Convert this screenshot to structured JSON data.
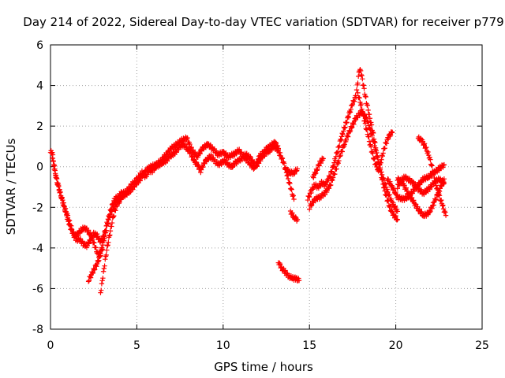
{
  "chart_data": {
    "type": "scatter",
    "title": "Day 214 of 2022, Sidereal Day-to-day VTEC variation (SDTVAR) for receiver p779",
    "xlabel": "GPS time / hours",
    "ylabel": "SDTVAR / TECUs",
    "xlim": [
      0,
      25
    ],
    "ylim": [
      -8,
      6
    ],
    "xticks": [
      0,
      5,
      10,
      15,
      20,
      25
    ],
    "yticks": [
      -8,
      -6,
      -4,
      -2,
      0,
      2,
      4,
      6
    ],
    "grid": true,
    "marker": "+",
    "colors": {
      "series": "#ff0000",
      "grid": "#a0a0a0",
      "axis": "#000000"
    },
    "series": [
      {
        "name": "SDTVAR",
        "segments": [
          [
            [
              0.0,
              0.7
            ],
            [
              0.1,
              0.7
            ],
            [
              0.2,
              0.1
            ],
            [
              0.35,
              -0.6
            ],
            [
              0.5,
              -1.1
            ],
            [
              0.7,
              -1.7
            ],
            [
              0.9,
              -2.2
            ],
            [
              1.1,
              -2.7
            ],
            [
              1.3,
              -3.3
            ],
            [
              1.5,
              -3.6
            ],
            [
              1.7,
              -3.6
            ],
            [
              1.9,
              -3.8
            ],
            [
              2.1,
              -3.9
            ],
            [
              2.3,
              -3.6
            ],
            [
              2.5,
              -3.3
            ],
            [
              2.7,
              -3.4
            ],
            [
              2.9,
              -3.7
            ],
            [
              3.1,
              -3.4
            ],
            [
              3.3,
              -2.7
            ],
            [
              3.5,
              -2.1
            ],
            [
              3.7,
              -1.6
            ],
            [
              3.9,
              -1.5
            ],
            [
              4.1,
              -1.3
            ],
            [
              4.3,
              -1.3
            ],
            [
              4.5,
              -1.1
            ],
            [
              4.7,
              -0.9
            ],
            [
              4.9,
              -0.7
            ],
            [
              5.1,
              -0.5
            ],
            [
              5.3,
              -0.3
            ],
            [
              5.5,
              -0.5
            ],
            [
              5.7,
              -0.2
            ],
            [
              5.9,
              -0.2
            ],
            [
              6.1,
              0.0
            ],
            [
              6.3,
              0.1
            ],
            [
              6.5,
              0.2
            ],
            [
              6.7,
              0.3
            ],
            [
              6.9,
              0.5
            ],
            [
              7.1,
              0.6
            ],
            [
              7.3,
              0.8
            ],
            [
              7.5,
              1.0
            ],
            [
              7.7,
              1.1
            ],
            [
              7.9,
              0.9
            ],
            [
              8.1,
              0.7
            ],
            [
              8.3,
              0.3
            ],
            [
              8.5,
              0.1
            ],
            [
              8.7,
              -0.2
            ],
            [
              8.9,
              0.2
            ],
            [
              9.1,
              0.4
            ],
            [
              9.3,
              0.5
            ],
            [
              9.5,
              0.3
            ],
            [
              9.7,
              0.1
            ],
            [
              9.9,
              0.2
            ],
            [
              10.1,
              0.3
            ],
            [
              10.3,
              0.1
            ],
            [
              10.5,
              0.0
            ],
            [
              10.7,
              0.2
            ],
            [
              10.9,
              0.3
            ],
            [
              11.1,
              0.4
            ],
            [
              11.3,
              0.6
            ],
            [
              11.5,
              0.5
            ],
            [
              11.7,
              0.3
            ],
            [
              11.9,
              0.0
            ],
            [
              12.1,
              0.3
            ],
            [
              12.3,
              0.5
            ],
            [
              12.5,
              0.7
            ],
            [
              12.7,
              0.8
            ],
            [
              12.9,
              1.0
            ],
            [
              13.1,
              0.9
            ],
            [
              13.3,
              0.6
            ],
            [
              13.5,
              0.2
            ],
            [
              13.7,
              -0.4
            ],
            [
              13.9,
              -1.0
            ],
            [
              14.1,
              -1.6
            ]
          ],
          [
            [
              0.1,
              0.5
            ],
            [
              0.25,
              -0.2
            ],
            [
              0.4,
              -0.8
            ],
            [
              0.6,
              -1.4
            ],
            [
              0.8,
              -2.0
            ],
            [
              1.0,
              -2.6
            ],
            [
              1.2,
              -3.1
            ],
            [
              1.4,
              -3.4
            ],
            [
              1.6,
              -3.3
            ],
            [
              1.8,
              -3.1
            ],
            [
              2.0,
              -3.0
            ],
            [
              2.2,
              -3.2
            ],
            [
              2.4,
              -3.5
            ],
            [
              2.6,
              -4.0
            ],
            [
              2.8,
              -4.4
            ],
            [
              3.0,
              -4.0
            ],
            [
              3.2,
              -3.2
            ],
            [
              3.4,
              -2.5
            ],
            [
              3.6,
              -2.0
            ],
            [
              3.8,
              -1.7
            ],
            [
              4.0,
              -1.5
            ],
            [
              4.3,
              -1.4
            ],
            [
              4.6,
              -1.2
            ],
            [
              4.9,
              -0.9
            ],
            [
              5.2,
              -0.6
            ],
            [
              5.5,
              -0.2
            ],
            [
              5.8,
              0.0
            ],
            [
              6.1,
              0.1
            ],
            [
              6.4,
              0.3
            ],
            [
              6.7,
              0.6
            ],
            [
              7.0,
              0.9
            ],
            [
              7.3,
              1.1
            ],
            [
              7.6,
              1.3
            ],
            [
              7.9,
              1.4
            ],
            [
              8.2,
              0.8
            ],
            [
              8.5,
              0.5
            ],
            [
              8.8,
              0.9
            ],
            [
              9.1,
              1.1
            ],
            [
              9.4,
              0.9
            ],
            [
              9.7,
              0.6
            ],
            [
              10.0,
              0.7
            ],
            [
              10.3,
              0.5
            ],
            [
              10.6,
              0.6
            ],
            [
              10.9,
              0.8
            ],
            [
              11.2,
              0.5
            ],
            [
              11.5,
              0.2
            ],
            [
              11.8,
              -0.1
            ],
            [
              12.1,
              0.5
            ],
            [
              12.4,
              0.8
            ],
            [
              12.7,
              1.0
            ],
            [
              13.0,
              1.2
            ],
            [
              13.2,
              0.9
            ]
          ],
          [
            [
              2.2,
              -5.6
            ],
            [
              2.5,
              -5.1
            ],
            [
              2.8,
              -4.6
            ],
            [
              3.0,
              -4.0
            ],
            [
              3.1,
              -3.4
            ]
          ],
          [
            [
              2.9,
              -6.2
            ],
            [
              3.0,
              -5.6
            ],
            [
              3.1,
              -5.0
            ],
            [
              3.2,
              -4.4
            ],
            [
              3.35,
              -3.7
            ],
            [
              3.5,
              -3.0
            ],
            [
              3.7,
              -2.2
            ],
            [
              3.9,
              -1.8
            ],
            [
              4.1,
              -1.6
            ]
          ],
          [
            [
              13.2,
              -4.7
            ],
            [
              13.4,
              -5.0
            ],
            [
              13.6,
              -5.2
            ],
            [
              13.8,
              -5.4
            ],
            [
              14.0,
              -5.5
            ],
            [
              14.2,
              -5.5
            ],
            [
              14.4,
              -5.6
            ]
          ],
          [
            [
              13.9,
              -2.2
            ],
            [
              14.1,
              -2.5
            ],
            [
              14.3,
              -2.6
            ]
          ],
          [
            [
              13.6,
              -0.1
            ],
            [
              13.9,
              -0.3
            ],
            [
              14.1,
              -0.3
            ],
            [
              14.3,
              -0.1
            ]
          ],
          [
            [
              14.9,
              -1.6
            ],
            [
              15.1,
              -1.2
            ],
            [
              15.3,
              -0.9
            ],
            [
              15.5,
              -1.0
            ],
            [
              15.7,
              -0.8
            ],
            [
              15.9,
              -0.9
            ],
            [
              16.1,
              -0.6
            ],
            [
              16.3,
              -0.2
            ],
            [
              16.5,
              0.4
            ],
            [
              16.7,
              1.0
            ],
            [
              16.9,
              1.6
            ],
            [
              17.1,
              2.1
            ],
            [
              17.3,
              2.6
            ],
            [
              17.5,
              3.1
            ],
            [
              17.7,
              3.5
            ],
            [
              17.8,
              4.2
            ],
            [
              17.9,
              4.8
            ],
            [
              18.0,
              4.6
            ],
            [
              18.1,
              4.1
            ],
            [
              18.3,
              3.2
            ],
            [
              18.5,
              2.4
            ],
            [
              18.7,
              1.6
            ],
            [
              18.9,
              0.6
            ],
            [
              19.1,
              -0.2
            ],
            [
              19.3,
              -1.0
            ],
            [
              19.5,
              -1.6
            ],
            [
              19.7,
              -2.1
            ],
            [
              19.9,
              -2.4
            ],
            [
              20.1,
              -2.6
            ]
          ],
          [
            [
              15.0,
              -2.0
            ],
            [
              15.3,
              -1.6
            ],
            [
              15.6,
              -1.5
            ],
            [
              15.9,
              -1.3
            ],
            [
              16.2,
              -0.9
            ],
            [
              16.5,
              -0.2
            ],
            [
              16.8,
              0.6
            ],
            [
              17.1,
              1.3
            ],
            [
              17.4,
              1.9
            ],
            [
              17.7,
              2.4
            ],
            [
              18.0,
              2.7
            ],
            [
              18.3,
              2.4
            ],
            [
              18.6,
              1.6
            ],
            [
              18.9,
              0.6
            ],
            [
              19.2,
              -0.4
            ],
            [
              19.5,
              -1.2
            ],
            [
              19.8,
              -1.8
            ],
            [
              20.1,
              -2.2
            ]
          ],
          [
            [
              15.2,
              -0.5
            ],
            [
              15.4,
              -0.2
            ],
            [
              15.6,
              0.2
            ],
            [
              15.8,
              0.4
            ]
          ],
          [
            [
              17.8,
              3.6
            ],
            [
              18.0,
              3.0
            ],
            [
              18.2,
              2.2
            ],
            [
              18.4,
              1.5
            ],
            [
              18.6,
              0.8
            ],
            [
              18.8,
              0.2
            ],
            [
              19.0,
              -0.2
            ],
            [
              19.2,
              0.5
            ],
            [
              19.4,
              1.1
            ],
            [
              19.6,
              1.5
            ],
            [
              19.8,
              1.7
            ]
          ],
          [
            [
              20.1,
              -0.6
            ],
            [
              20.4,
              -0.8
            ],
            [
              20.7,
              -1.3
            ],
            [
              21.0,
              -1.7
            ],
            [
              21.3,
              -2.1
            ],
            [
              21.6,
              -2.4
            ],
            [
              21.9,
              -2.3
            ],
            [
              22.2,
              -1.8
            ],
            [
              22.5,
              -1.2
            ],
            [
              22.8,
              -0.6
            ]
          ],
          [
            [
              19.5,
              -0.6
            ],
            [
              19.8,
              -1.0
            ],
            [
              20.1,
              -1.5
            ],
            [
              20.4,
              -1.6
            ],
            [
              20.7,
              -1.5
            ],
            [
              21.0,
              -1.2
            ],
            [
              21.3,
              -0.9
            ],
            [
              21.6,
              -0.6
            ],
            [
              21.9,
              -0.5
            ],
            [
              22.2,
              -0.3
            ],
            [
              22.5,
              -0.1
            ],
            [
              22.8,
              0.1
            ]
          ],
          [
            [
              20.1,
              -1.0
            ],
            [
              20.3,
              -0.7
            ],
            [
              20.5,
              -0.5
            ],
            [
              20.7,
              -0.6
            ],
            [
              21.0,
              -0.8
            ],
            [
              21.3,
              -1.1
            ],
            [
              21.6,
              -1.3
            ],
            [
              21.9,
              -1.1
            ],
            [
              22.2,
              -0.8
            ],
            [
              22.5,
              -0.6
            ],
            [
              22.8,
              -0.8
            ]
          ],
          [
            [
              21.3,
              1.4
            ],
            [
              21.5,
              1.3
            ],
            [
              21.7,
              1.0
            ],
            [
              21.9,
              0.6
            ],
            [
              22.1,
              0.0
            ],
            [
              22.3,
              -0.8
            ],
            [
              22.5,
              -1.4
            ],
            [
              22.7,
              -1.9
            ],
            [
              22.9,
              -2.4
            ]
          ]
        ]
      }
    ]
  }
}
